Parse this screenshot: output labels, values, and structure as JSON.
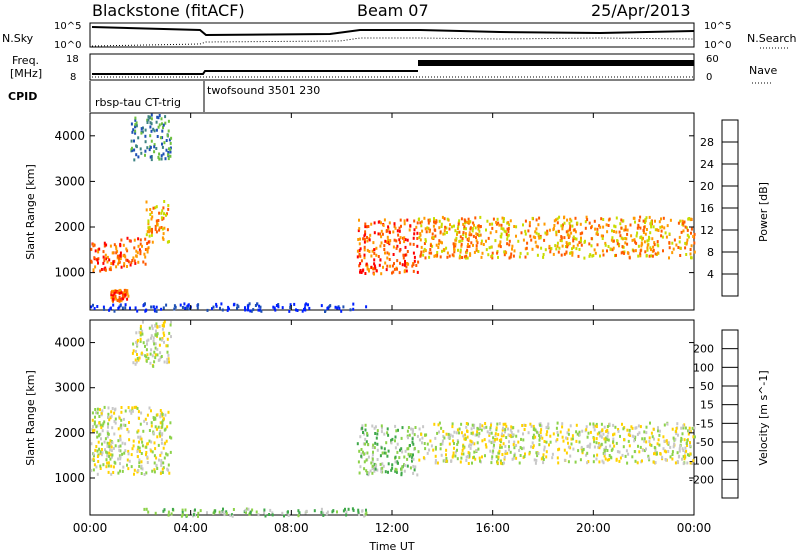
{
  "header": {
    "radar": "Blackstone (fitACF)",
    "beam": "Beam 07",
    "date": "25/Apr/2013"
  },
  "params": {
    "nsky_label": "N.Sky",
    "nsearch_label": "N.Search",
    "freq_label_1": "Freq.",
    "freq_label_2": "[MHz]",
    "nave_label": "Nave",
    "cpid_label": "CPID",
    "nsky_ticks": [
      "10^5",
      "10^0"
    ],
    "nsearch_ticks": [
      "10^5",
      "10^0"
    ],
    "freq_ticks": [
      "18",
      "8"
    ],
    "nave_ticks": [
      "60",
      "0"
    ],
    "cpid_segments": [
      {
        "start_hour": 0,
        "end_hour": 4.5,
        "label": "rbsp-tau CT-trig"
      },
      {
        "start_hour": 4.5,
        "end_hour": 24,
        "label": "twofsound 3501 230"
      }
    ]
  },
  "xaxis": {
    "label": "Time UT",
    "ticks": [
      "00:00",
      "04:00",
      "08:00",
      "12:00",
      "16:00",
      "20:00",
      "00:00"
    ]
  },
  "chart_data": [
    {
      "type": "heatmap",
      "title": "",
      "xlabel": "Time UT",
      "ylabel": "Slant Range [km]",
      "xlim_hours": [
        0,
        24
      ],
      "ylim_km": [
        180,
        4500
      ],
      "yticks": [
        "1000",
        "2000",
        "3000",
        "4000"
      ],
      "colorbar": {
        "label": "Power [dB]",
        "ticks": [
          "4",
          "8",
          "12",
          "16",
          "20",
          "24",
          "28"
        ],
        "colors": [
          "#0020ff",
          "#1e50b4",
          "#3c8282",
          "#6ec040",
          "#c8dc00",
          "#ff9a00",
          "#ff5a00",
          "#ff0000"
        ]
      },
      "regions": [
        {
          "t0": 0.0,
          "t1": 1.2,
          "r0": 1050,
          "r1": 1700,
          "level": 6
        },
        {
          "t0": 1.0,
          "t1": 2.3,
          "r0": 1150,
          "r1": 1800,
          "level": 6
        },
        {
          "t0": 2.2,
          "t1": 3.1,
          "r0": 1700,
          "r1": 2600,
          "level": 5
        },
        {
          "t0": 1.6,
          "t1": 3.2,
          "r0": 3500,
          "r1": 4500,
          "level": 2
        },
        {
          "t0": 0.8,
          "t1": 1.5,
          "r0": 400,
          "r1": 650,
          "level": 6
        },
        {
          "t0": 10.6,
          "t1": 13.0,
          "r0": 1000,
          "r1": 2200,
          "level": 6
        },
        {
          "t0": 13.0,
          "t1": 24.0,
          "r0": 1350,
          "r1": 2250,
          "level": 5
        },
        {
          "t0": 0.0,
          "t1": 11.0,
          "r0": 180,
          "r1": 350,
          "level": 0
        }
      ]
    },
    {
      "type": "heatmap",
      "title": "",
      "xlabel": "Time UT",
      "ylabel": "Slant Range [km]",
      "xlim_hours": [
        0,
        24
      ],
      "ylim_km": [
        180,
        4500
      ],
      "yticks": [
        "1000",
        "2000",
        "3000",
        "4000"
      ],
      "colorbar": {
        "label": "Velocity [m s^-1]",
        "ticks": [
          "200",
          "100",
          "50",
          "15",
          "-15",
          "-50",
          "-100",
          "-200"
        ],
        "colors": [
          "#1a2aa8",
          "#2f6ee0",
          "#3fa84a",
          "#8cd24a",
          "#c8c8c8",
          "#ffd200",
          "#ff9a00",
          "#ff5a00",
          "#ff0000"
        ]
      },
      "regions": [
        {
          "t0": 0.0,
          "t1": 3.2,
          "r0": 1100,
          "r1": 2600,
          "level": 4
        },
        {
          "t0": 1.6,
          "t1": 3.2,
          "r0": 3500,
          "r1": 4500,
          "level": 4
        },
        {
          "t0": 10.6,
          "t1": 13.0,
          "r0": 1100,
          "r1": 2200,
          "level": 3
        },
        {
          "t0": 13.0,
          "t1": 24.0,
          "r0": 1350,
          "r1": 2250,
          "level": 4
        },
        {
          "t0": 2.0,
          "t1": 11.0,
          "r0": 180,
          "r1": 350,
          "level": 3
        }
      ]
    }
  ]
}
